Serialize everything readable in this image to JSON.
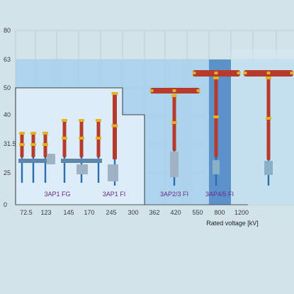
{
  "chart_data": {
    "type": "area",
    "y_ticks": [
      "80",
      "63",
      "50",
      "40",
      "31.5",
      "25",
      "0"
    ],
    "x_ticks": [
      "72.5",
      "123",
      "145",
      "170",
      "245",
      "300",
      "362",
      "420",
      "550",
      "800",
      "1200"
    ],
    "xlabel": "Rated voltage [kV]",
    "ylabel": "",
    "series": [
      {
        "name": "3AP1 FG",
        "max_current_kA": 50,
        "max_voltage_kV": 245
      },
      {
        "name": "3AP1 FI",
        "max_current_kA": 40,
        "max_voltage_kV": 300
      },
      {
        "name": "3AP2/3 FI",
        "max_current_kA": 63,
        "max_voltage_kV": 550
      },
      {
        "name": "3AP4/5 FI",
        "max_current_kA": 63,
        "max_voltage_kV": 800
      }
    ],
    "grid": true,
    "colors": {
      "background": "#d3e3ea",
      "grid": "#b9ccd6",
      "region_fg": "#dcecf8",
      "region_2_3": "#9ccbe9",
      "region_4_5": "#4d86c4",
      "insulator_red": "#b83a2c",
      "flange_yellow": "#e2b226",
      "steel_blue": "#2a6fb0"
    }
  }
}
